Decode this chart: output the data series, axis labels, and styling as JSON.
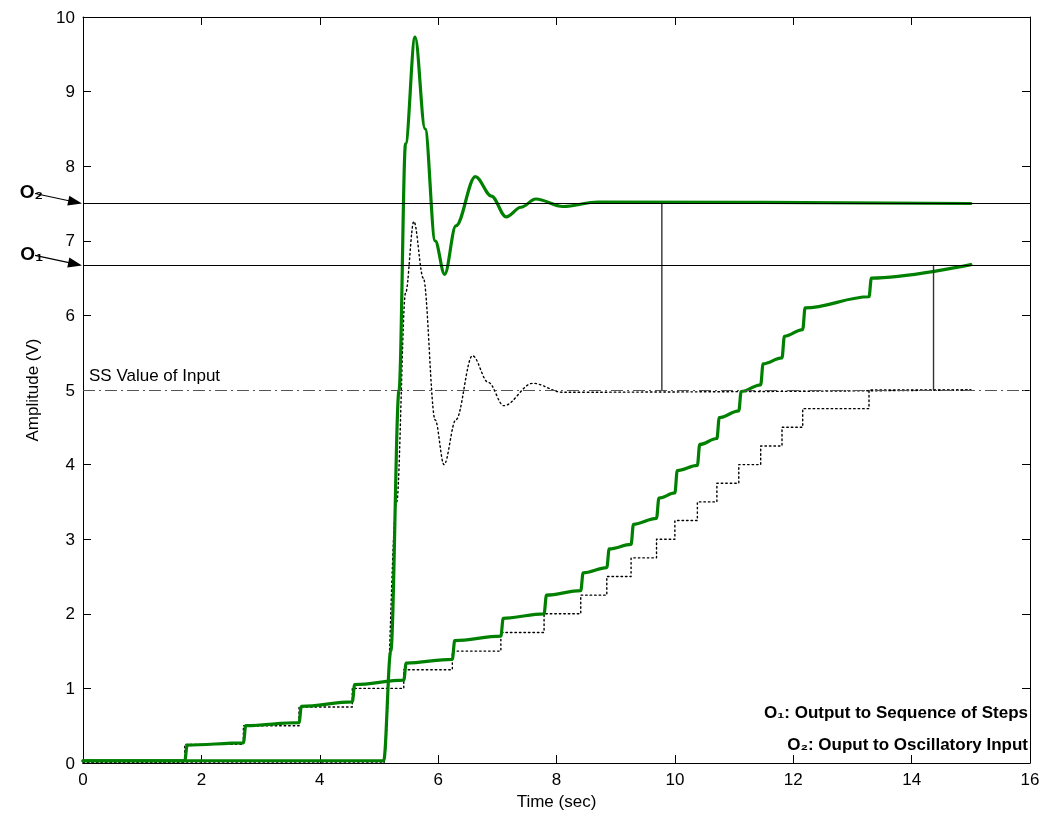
{
  "chart_data": {
    "type": "line",
    "xlabel": "Time (sec)",
    "ylabel": "Amplitude (V)",
    "xlim": [
      0,
      16
    ],
    "xticks": [
      0,
      2,
      4,
      6,
      8,
      10,
      12,
      14,
      16
    ],
    "ylim": [
      0,
      10
    ],
    "yticks": [
      0,
      1,
      2,
      3,
      4,
      5,
      6,
      7,
      8,
      9,
      10
    ],
    "grid": false,
    "marker": "none",
    "series": [
      {
        "type": "line",
        "color": "#000000",
        "line_style": "dotted",
        "x": [
          0,
          5.08,
          5.3,
          5.45,
          5.59,
          5.75,
          5.95,
          6.1,
          6.3,
          6.58,
          6.85,
          7.11,
          7.6,
          8.1,
          15
        ],
        "values": [
          0,
          0,
          3.5,
          6.3,
          7.26,
          6.5,
          4.6,
          4.0,
          4.6,
          5.46,
          5.1,
          4.79,
          5.09,
          4.97,
          5
        ]
      },
      {
        "type": "step",
        "color": "#000000",
        "line_style": "dotted",
        "x": [
          0,
          1.72,
          2.71,
          3.65,
          4.55,
          5.42,
          6.24,
          7.06,
          7.79,
          8.41,
          8.85,
          9.26,
          9.69,
          10.0,
          10.38,
          10.71,
          11.08,
          11.45,
          11.81,
          12.16,
          13.28,
          15
        ],
        "values": [
          0,
          0.25,
          0.5,
          0.75,
          1.0,
          1.25,
          1.5,
          1.75,
          2.0,
          2.25,
          2.5,
          2.75,
          3.0,
          3.25,
          3.5,
          3.75,
          4.0,
          4.25,
          4.5,
          4.75,
          5.0,
          5.0
        ]
      },
      {
        "type": "line",
        "color": "#008000",
        "line_style": "solid",
        "x": [
          0,
          5.08,
          5.2,
          5.34,
          5.45,
          5.61,
          5.78,
          5.95,
          6.11,
          6.3,
          6.63,
          6.9,
          7.15,
          7.4,
          7.65,
          8.11,
          8.7,
          15
        ],
        "values": [
          0.03,
          0.03,
          1.5,
          5.0,
          8.3,
          9.73,
          8.5,
          7.0,
          6.55,
          7.2,
          7.86,
          7.6,
          7.32,
          7.45,
          7.56,
          7.46,
          7.52,
          7.5
        ]
      },
      {
        "type": "line",
        "color": "#008000",
        "line_style": "solid",
        "x": [
          0,
          1.72,
          1.76,
          2.71,
          2.75,
          3.65,
          3.69,
          4.55,
          4.59,
          5.42,
          5.46,
          6.24,
          6.28,
          7.06,
          7.1,
          7.79,
          7.83,
          8.41,
          8.45,
          8.85,
          8.89,
          9.26,
          9.3,
          9.69,
          9.73,
          10.0,
          10.04,
          10.38,
          10.42,
          10.71,
          10.75,
          11.08,
          11.12,
          11.45,
          11.49,
          11.81,
          11.85,
          12.16,
          12.2,
          13.28,
          13.32,
          15
        ],
        "values": [
          0.03,
          0.03,
          0.24,
          0.27,
          0.5,
          0.54,
          0.76,
          0.82,
          1.05,
          1.11,
          1.34,
          1.39,
          1.64,
          1.7,
          1.94,
          2.0,
          2.25,
          2.31,
          2.55,
          2.62,
          2.87,
          2.93,
          3.2,
          3.28,
          3.55,
          3.62,
          3.92,
          3.99,
          4.27,
          4.35,
          4.63,
          4.72,
          4.98,
          5.07,
          5.35,
          5.43,
          5.72,
          5.81,
          6.1,
          6.25,
          6.5,
          6.68
        ]
      },
      {
        "type": "line",
        "color": "#333333",
        "line_style": "solid",
        "x": [
          9.78,
          9.78
        ],
        "values": [
          5,
          7.5
        ]
      },
      {
        "type": "line",
        "color": "#333333",
        "line_style": "solid",
        "x": [
          14.37,
          14.37
        ],
        "values": [
          5,
          6.67
        ]
      }
    ],
    "ref_lines": [
      {
        "axis": "y",
        "value": 5,
        "label": "SS Value of Input",
        "color": "#555555",
        "line_style": "dashed"
      },
      {
        "axis": "y",
        "value": 7.5,
        "label": "O₂",
        "color": "#000000",
        "line_style": "solid"
      },
      {
        "axis": "y",
        "value": 6.67,
        "label": "O₁",
        "color": "#000000",
        "line_style": "solid"
      }
    ],
    "annotations": [
      "O₁: Output to Sequence of Steps",
      "O₂: Ouput to Oscillatory Input"
    ]
  }
}
